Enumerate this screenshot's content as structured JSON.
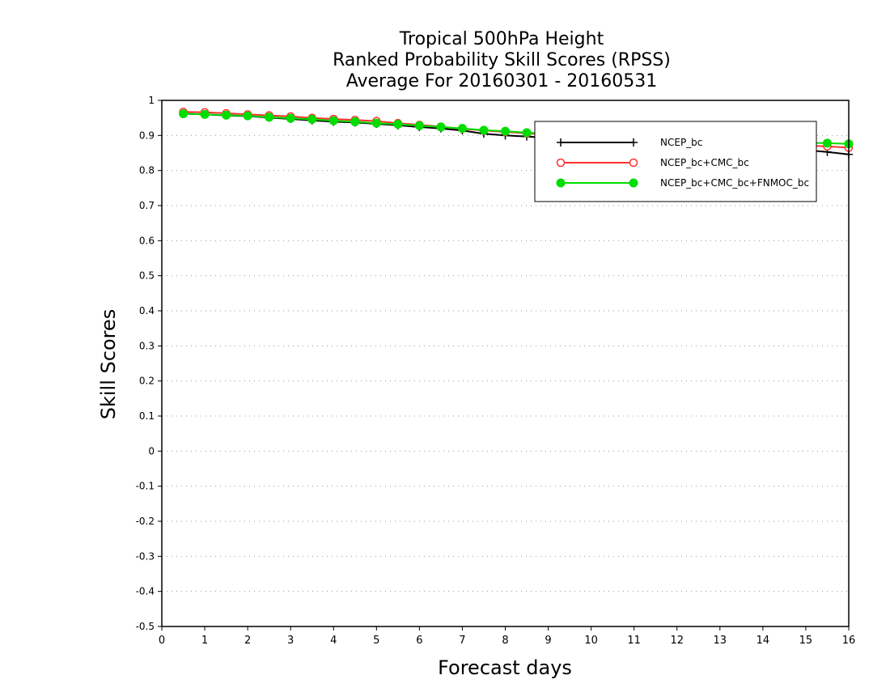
{
  "chart_data": {
    "type": "line",
    "title": [
      "Tropical 500hPa Height",
      "Ranked Probability Skill Scores (RPSS)",
      "Average For 20160301 - 20160531"
    ],
    "xlabel": "Forecast days",
    "ylabel": "Skill Scores",
    "xlim": [
      0,
      16
    ],
    "ylim": [
      -0.5,
      1
    ],
    "xticks": [
      "0",
      "1",
      "2",
      "3",
      "4",
      "5",
      "6",
      "7",
      "8",
      "9",
      "10",
      "11",
      "12",
      "13",
      "14",
      "15",
      "16"
    ],
    "yticks": [
      "1",
      "0.9",
      "0.8",
      "0.7",
      "0.6",
      "0.5",
      "0.4",
      "0.3",
      "0.2",
      "0.1",
      "0",
      "-0.1",
      "-0.2",
      "-0.3",
      "-0.4",
      "-0.5"
    ],
    "grid": "horizontal dotted",
    "legend_position": "top-right",
    "x": [
      0.5,
      1,
      1.5,
      2,
      2.5,
      3,
      3.5,
      4,
      4.5,
      5,
      5.5,
      6,
      6.5,
      7,
      7.5,
      8,
      8.5,
      9,
      9.5,
      10,
      10.5,
      11,
      11.5,
      12,
      12.5,
      13,
      13.5,
      14,
      14.5,
      15,
      15.5,
      16
    ],
    "series": [
      {
        "name": "NCEP_bc",
        "color": "#000000",
        "marker": "plus",
        "values": [
          0.962,
          0.96,
          0.957,
          0.955,
          0.951,
          0.947,
          0.943,
          0.939,
          0.937,
          0.933,
          0.929,
          0.924,
          0.92,
          0.914,
          0.905,
          0.9,
          0.897,
          0.893,
          0.89,
          0.888,
          0.886,
          0.884,
          0.882,
          0.879,
          0.876,
          0.873,
          0.87,
          0.866,
          0.862,
          0.858,
          0.853,
          0.846
        ]
      },
      {
        "name": "NCEP_bc+CMC_bc",
        "color": "#ff3030",
        "marker": "open-circle",
        "values": [
          0.967,
          0.966,
          0.963,
          0.96,
          0.957,
          0.954,
          0.95,
          0.947,
          0.944,
          0.941,
          0.935,
          0.93,
          0.925,
          0.919,
          0.914,
          0.91,
          0.906,
          0.902,
          0.899,
          0.896,
          0.894,
          0.892,
          0.89,
          0.888,
          0.886,
          0.883,
          0.88,
          0.877,
          0.874,
          0.871,
          0.869,
          0.865
        ]
      },
      {
        "name": "NCEP_bc+CMC_bc+FNMOC_bc",
        "color": "#00dd00",
        "marker": "filled-circle",
        "values": [
          0.962,
          0.96,
          0.958,
          0.956,
          0.952,
          0.949,
          0.946,
          0.942,
          0.939,
          0.935,
          0.932,
          0.928,
          0.924,
          0.92,
          0.915,
          0.912,
          0.908,
          0.905,
          0.902,
          0.899,
          0.897,
          0.895,
          0.893,
          0.891,
          0.889,
          0.887,
          0.885,
          0.883,
          0.881,
          0.879,
          0.878,
          0.876
        ]
      }
    ]
  }
}
